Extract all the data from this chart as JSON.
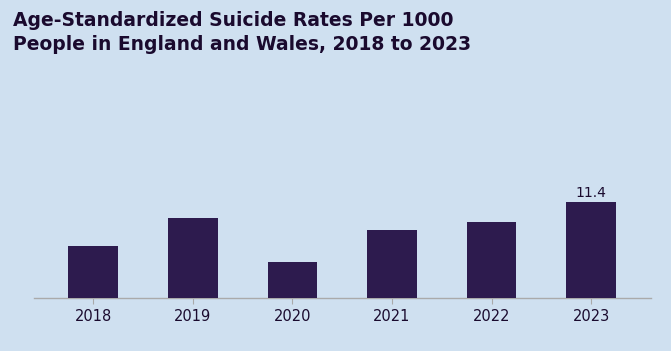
{
  "categories": [
    "2018",
    "2019",
    "2020",
    "2021",
    "2022",
    "2023"
  ],
  "values": [
    10.3,
    11.0,
    9.9,
    10.7,
    10.9,
    11.4
  ],
  "bar_color": "#2d1b4e",
  "annotation_value": "11.4",
  "annotation_year": "2023",
  "title_line1": "Age-Standardized Suicide Rates Per 1000",
  "title_line2": "People in England and Wales, 2018 to 2023",
  "background_color": "#cfe0f0",
  "ylim_min": 9.0,
  "ylim_max": 12.5,
  "bar_width": 0.5,
  "title_fontsize": 13.5,
  "title_color": "#1a0a2e",
  "tick_label_fontsize": 10.5,
  "annotation_fontsize": 10,
  "annotation_color": "#1a0a2e",
  "spine_color": "#aaaaaa"
}
